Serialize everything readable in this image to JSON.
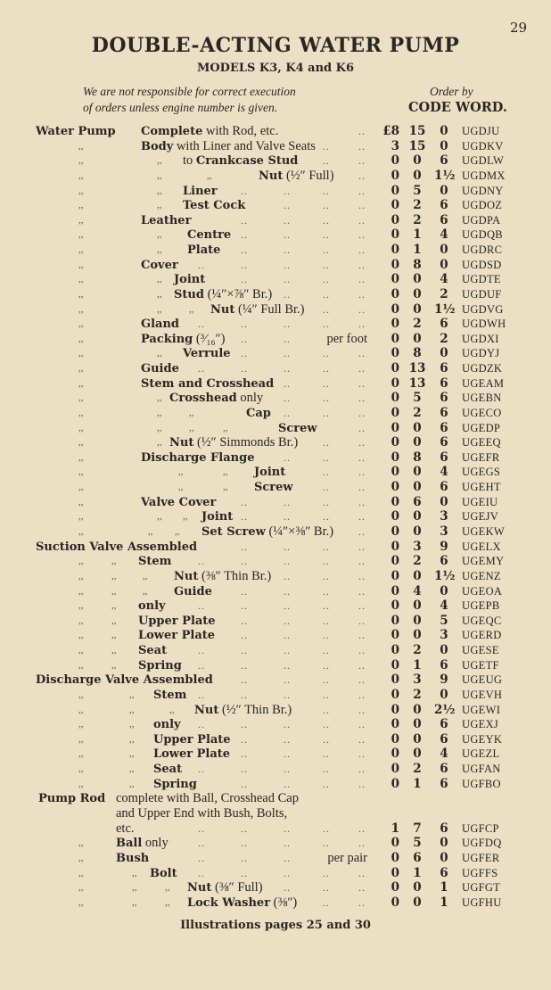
{
  "page_number": "29",
  "title": "DOUBLE-ACTING WATER PUMP",
  "subtitle": "MODELS K3, K4 and K6",
  "note_lines": [
    "We are not responsible for correct execution",
    "of orders unless engine number is given."
  ],
  "order_by": "Order by",
  "code_word_header": "CODE WORD.",
  "ditto_mark": ",,",
  "leader": "..",
  "rows": [
    {
      "head": "Water Pump",
      "bold": "Complete",
      "text": " with Rod, etc.",
      "pounds": "£8",
      "s": "15",
      "d": "0",
      "code": "UGDJU",
      "dittos": 0
    },
    {
      "bold": "Body",
      "text": " with Liner and Valve Seats",
      "pounds": "3",
      "s": "15",
      "d": "0",
      "code": "UGDKV",
      "dittos": 1
    },
    {
      "bold": "Crankcase Stud",
      "pre": "to ",
      "text": "",
      "pounds": "0",
      "s": "0",
      "d": "6",
      "code": "UGDLW",
      "dittos": 2
    },
    {
      "bold": "Nut",
      "text": " (½″ Full)",
      "pounds": "0",
      "s": "0",
      "d": "1½",
      "code": "UGDMX",
      "dittos": 3
    },
    {
      "bold": "Liner",
      "text": "",
      "pounds": "0",
      "s": "5",
      "d": "0",
      "code": "UGDNY",
      "dittos": 2
    },
    {
      "bold": "Test Cock",
      "text": "",
      "pounds": "0",
      "s": "2",
      "d": "6",
      "code": "UGDOZ",
      "dittos": 2
    },
    {
      "bold": "Leather",
      "text": "",
      "pounds": "0",
      "s": "2",
      "d": "6",
      "code": "UGDPA",
      "dittos": 1
    },
    {
      "bold": "Centre",
      "text": "",
      "pounds": "0",
      "s": "1",
      "d": "4",
      "code": "UGDQB",
      "dittos": 2
    },
    {
      "bold": "Plate",
      "text": "",
      "pounds": "0",
      "s": "1",
      "d": "0",
      "code": "UGDRC",
      "dittos": 2
    },
    {
      "bold": "Cover",
      "text": "",
      "pounds": "0",
      "s": "8",
      "d": "0",
      "code": "UGDSD",
      "dittos": 1
    },
    {
      "bold": "Joint",
      "text": "",
      "pounds": "0",
      "s": "0",
      "d": "4",
      "code": "UGDTE",
      "dittos": 2
    },
    {
      "bold": "Stud",
      "text": " (¼″×⅞″ Br.)",
      "pounds": "0",
      "s": "0",
      "d": "2",
      "code": "UGDUF",
      "dittos": 2
    },
    {
      "bold": "Nut",
      "text": " (¼″ Full Br.)",
      "pounds": "0",
      "s": "0",
      "d": "1½",
      "code": "UGDVG",
      "dittos": 3
    },
    {
      "bold": "Gland",
      "text": "",
      "pounds": "0",
      "s": "2",
      "d": "6",
      "code": "UGDWH",
      "dittos": 1
    },
    {
      "bold": "Packing",
      "text": " (³⁄₁₆″)",
      "note": "per foot",
      "pounds": "0",
      "s": "0",
      "d": "2",
      "code": "UGDXI",
      "dittos": 1
    },
    {
      "bold": "Verrule",
      "text": "",
      "pounds": "0",
      "s": "8",
      "d": "0",
      "code": "UGDYJ",
      "dittos": 2
    },
    {
      "bold": "Guide",
      "text": "",
      "pounds": "0",
      "s": "13",
      "d": "6",
      "code": "UGDZK",
      "dittos": 1
    },
    {
      "bold": "Stem and Crosshead",
      "text": "",
      "pounds": "0",
      "s": "13",
      "d": "6",
      "code": "UGEAM",
      "dittos": 1
    },
    {
      "bold": "Crosshead",
      "text": " only",
      "pounds": "0",
      "s": "5",
      "d": "6",
      "code": "UGEBN",
      "dittos": 2
    },
    {
      "bold": "Cap",
      "text": "",
      "pounds": "0",
      "s": "2",
      "d": "6",
      "code": "UGECO",
      "dittos": 3
    },
    {
      "bold": "Screw",
      "text": "",
      "pounds": "0",
      "s": "0",
      "d": "6",
      "code": "UGEDP",
      "dittos": 4
    },
    {
      "bold": "Nut",
      "text": " (½″ Simmonds Br.)",
      "pounds": "0",
      "s": "0",
      "d": "6",
      "code": "UGEEQ",
      "dittos": 2
    },
    {
      "bold": "Discharge Flange",
      "text": "",
      "pounds": "0",
      "s": "8",
      "d": "6",
      "code": "UGEFR",
      "dittos": 1
    },
    {
      "bold": "Joint",
      "text": "",
      "pounds": "0",
      "s": "0",
      "d": "4",
      "code": "UGEGS",
      "dittos": 3
    },
    {
      "bold": "Screw",
      "text": "",
      "pounds": "0",
      "s": "0",
      "d": "6",
      "code": "UGEHT",
      "dittos": 3
    },
    {
      "bold": "Valve Cover",
      "text": "",
      "pounds": "0",
      "s": "6",
      "d": "0",
      "code": "UGEIU",
      "dittos": 1
    },
    {
      "bold": "Joint",
      "text": "",
      "pounds": "0",
      "s": "0",
      "d": "3",
      "code": "UGEJV",
      "dittos": 3
    },
    {
      "bold": "Set Screw",
      "text": " (¼″×⅜″ Br.)",
      "pounds": "0",
      "s": "0",
      "d": "3",
      "code": "UGEKW",
      "dittos": 4
    },
    {
      "head": "Suction Valve Assembled",
      "bold": "",
      "text": "",
      "pounds": "0",
      "s": "3",
      "d": "9",
      "code": "UGELX",
      "dittos": 0
    },
    {
      "bold": "Stem",
      "text": "",
      "pounds": "0",
      "s": "2",
      "d": "6",
      "code": "UGEMY",
      "dittos": 2
    },
    {
      "bold": "Nut",
      "text": " (⅜″ Thin Br.)",
      "pounds": "0",
      "s": "0",
      "d": "1½",
      "code": "UGENZ",
      "dittos": 3
    },
    {
      "bold": "Guide",
      "text": "",
      "pounds": "0",
      "s": "4",
      "d": "0",
      "code": "UGEOA",
      "dittos": 3
    },
    {
      "bold": "only",
      "text": "",
      "pounds": "0",
      "s": "0",
      "d": "4",
      "code": "UGEPB",
      "dittos": 2
    },
    {
      "bold": "Upper Plate",
      "text": "",
      "pounds": "0",
      "s": "0",
      "d": "5",
      "code": "UGEQC",
      "dittos": 2
    },
    {
      "bold": "Lower Plate",
      "text": "",
      "pounds": "0",
      "s": "0",
      "d": "3",
      "code": "UGERD",
      "dittos": 2
    },
    {
      "bold": "Seat",
      "text": "",
      "pounds": "0",
      "s": "2",
      "d": "0",
      "code": "UGESE",
      "dittos": 2
    },
    {
      "bold": "Spring",
      "text": "",
      "pounds": "0",
      "s": "1",
      "d": "6",
      "code": "UGETF",
      "dittos": 2
    },
    {
      "head": "Discharge Valve Assembled",
      "bold": "",
      "text": "",
      "pounds": "0",
      "s": "3",
      "d": "9",
      "code": "UGEUG",
      "dittos": 0
    },
    {
      "bold": "Stem",
      "text": "",
      "pounds": "0",
      "s": "2",
      "d": "0",
      "code": "UGEVH",
      "dittos": 2
    },
    {
      "bold": "Nut",
      "text": " (½″ Thin Br.)",
      "pounds": "0",
      "s": "0",
      "d": "2½",
      "code": "UGEWI",
      "dittos": 3
    },
    {
      "bold": "only",
      "text": "",
      "pounds": "0",
      "s": "0",
      "d": "6",
      "code": "UGEXJ",
      "dittos": 2
    },
    {
      "bold": "Upper Plate",
      "text": "",
      "pounds": "0",
      "s": "0",
      "d": "6",
      "code": "UGEYK",
      "dittos": 2
    },
    {
      "bold": "Lower Plate",
      "text": "",
      "pounds": "0",
      "s": "0",
      "d": "4",
      "code": "UGEZL",
      "dittos": 2
    },
    {
      "bold": "Seat",
      "text": "",
      "pounds": "0",
      "s": "2",
      "d": "6",
      "code": "UGFAN",
      "dittos": 2
    },
    {
      "bold": "Spring",
      "text": "",
      "pounds": "0",
      "s": "1",
      "d": "6",
      "code": "UGFBO",
      "dittos": 2
    },
    {
      "head": "Pump Rod",
      "bold": "",
      "text": "complete with Ball, Crosshead Cap",
      "dittos": 0
    },
    {
      "bold": "",
      "text": "and Upper End with Bush, Bolts,",
      "dittos": 0
    },
    {
      "bold": "",
      "text": "etc.",
      "pounds": "1",
      "s": "7",
      "d": "6",
      "code": "UGFCP",
      "dittos": 0
    },
    {
      "bold": "Ball",
      "text": " only",
      "pounds": "0",
      "s": "5",
      "d": "0",
      "code": "UGFDQ",
      "dittos": 1
    },
    {
      "bold": "Bush",
      "text": "",
      "note": "per pair",
      "pounds": "0",
      "s": "6",
      "d": "0",
      "code": "UGFER",
      "dittos": 1
    },
    {
      "bold": "Bolt",
      "text": "",
      "pounds": "0",
      "s": "1",
      "d": "6",
      "code": "UGFFS",
      "dittos": 2
    },
    {
      "bold": "Nut",
      "text": " (⅜″ Full)",
      "pounds": "0",
      "s": "0",
      "d": "1",
      "code": "UGFGT",
      "dittos": 3
    },
    {
      "bold": "Lock Washer",
      "text": " (⅜″)",
      "pounds": "0",
      "s": "0",
      "d": "1",
      "code": "UGFHU",
      "dittos": 3
    }
  ],
  "footer": "Illustrations pages 25 and 30"
}
